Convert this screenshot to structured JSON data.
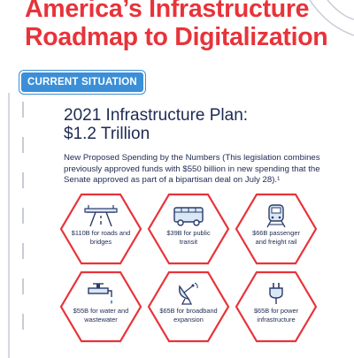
{
  "header": {
    "title_line1": "America’s Infrastructure",
    "title_line2": "Roadmap to Digitalization"
  },
  "badge": "CURRENT SITUATION",
  "plan": {
    "heading_line1": "2021 Infrastructure Plan:",
    "heading_line2": "$1.2 Trillion",
    "description": "New Proposed Spending by the Numbers (This legislation combines previously approved funds with $550 billion in new spending that the Senate approved as part of a bipartisan deal on July 28).¹"
  },
  "items": [
    {
      "icon": "highway-icon",
      "label": "$110B for roads and bridges"
    },
    {
      "icon": "bus-icon",
      "label": "$39B for public transit"
    },
    {
      "icon": "train-icon",
      "label": "$66B passenger and freight rail"
    },
    {
      "icon": "faucet-icon",
      "label": "$55B for water and wastewater"
    },
    {
      "icon": "satellite-dish-icon",
      "label": "$65B for broadband expansion"
    },
    {
      "icon": "power-plug-icon",
      "label": "$65B for power infrastructure"
    }
  ],
  "colors": {
    "red": "#e8333a",
    "navy": "#1e2a52",
    "blue": "#3a8fd8",
    "icon_line": "#2b3a6b",
    "icon_fill": "#d9e8f5"
  }
}
